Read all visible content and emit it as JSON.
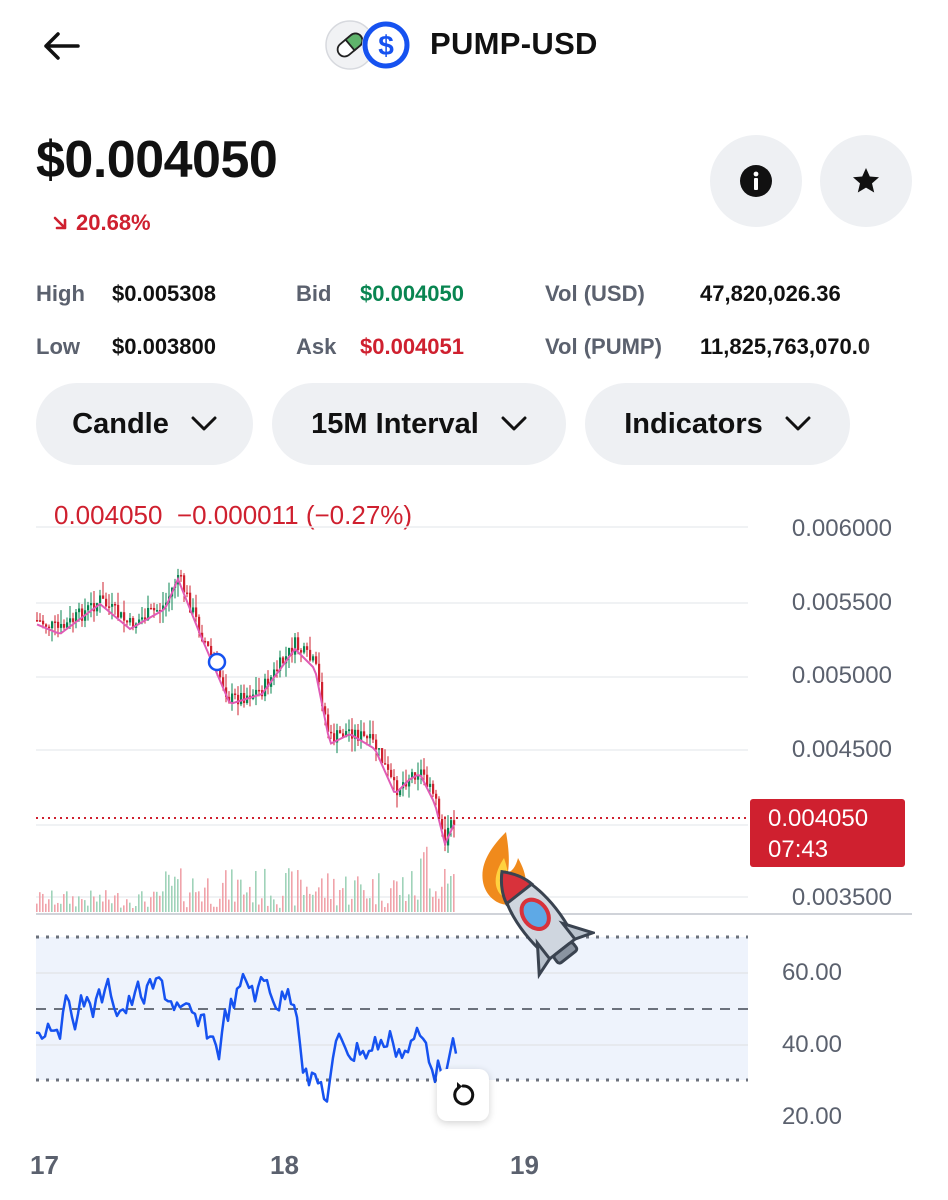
{
  "header": {
    "title": "PUMP-USD",
    "back_icon": "arrow-left-icon",
    "base_logo_icon": "pill-icon",
    "quote_logo_icon": "usd-coin-icon",
    "quote_logo_glyph": "$"
  },
  "price": {
    "current": "$0.004050",
    "change_pct": "20.68%",
    "change_direction": "down"
  },
  "actions": {
    "info_icon": "info-icon",
    "favorite_icon": "star-icon"
  },
  "stats": {
    "high_label": "High",
    "high_value": "$0.005308",
    "low_label": "Low",
    "low_value": "$0.003800",
    "bid_label": "Bid",
    "bid_value": "$0.004050",
    "ask_label": "Ask",
    "ask_value": "$0.004051",
    "vol_usd_label": "Vol (USD)",
    "vol_usd_value": "47,820,026.36",
    "vol_pump_label": "Vol (PUMP)",
    "vol_pump_value": "11,825,763,070.0"
  },
  "controls": {
    "chart_type": "Candle",
    "interval": "15M Interval",
    "indicators": "Indicators"
  },
  "chart": {
    "legend_price": "0.004050",
    "legend_change": "−0.000011",
    "legend_change_pct": "(−0.27%)",
    "price_ticks": [
      "0.006000",
      "0.005500",
      "0.005000",
      "0.004500",
      "0.003500"
    ],
    "last_price_tag": "0.004050",
    "countdown": "07:43",
    "rsi_ticks": [
      "60.00",
      "40.00",
      "20.00"
    ],
    "time_ticks": [
      "17",
      "18",
      "19"
    ],
    "reset_icon": "reset-icon",
    "sticker": "rocket-sticker",
    "colors": {
      "up": "#098551",
      "down": "#cf202f",
      "ma": "#e05bb5",
      "rsi": "#1652f0"
    }
  }
}
